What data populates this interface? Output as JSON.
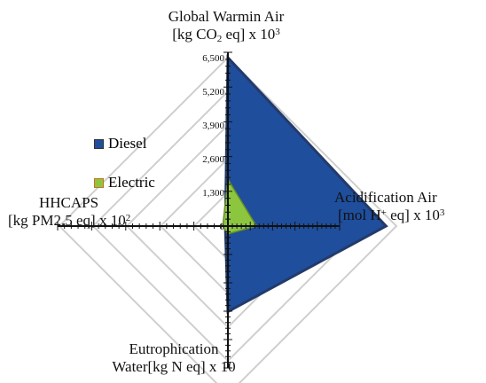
{
  "chart_data": {
    "type": "radar",
    "axes": [
      {
        "key": "gw",
        "line1": "Global Warmin Air",
        "line2_pre": "[kg CO",
        "line2_sub": "2",
        "line2_mid": " eq] x 10",
        "line2_sup": "3",
        "line2_post": ""
      },
      {
        "key": "ac",
        "line1": "Acidification Air",
        "line2_pre": "[mol H",
        "line2_sub": "",
        "line2_mid": "",
        "line2_sup": "+",
        "line2_post": " eq] x 10",
        "line2_sup2": "3"
      },
      {
        "key": "eu",
        "line1": "Eutrophication",
        "line2": "Water[kg N eq] x 10"
      },
      {
        "key": "hh",
        "line1": "HHCAPS",
        "line2_pre": "[kg PM2.5 eq] x 10",
        "line2_sup": "2"
      }
    ],
    "radial_ticks": [
      "0",
      "1,300",
      "2,600",
      "3,900",
      "5,200",
      "6,500"
    ],
    "rmax": 6500,
    "series": [
      {
        "name": "Diesel",
        "color": "#1f4e9c",
        "values": [
          6500,
          6100,
          3300,
          100
        ]
      },
      {
        "name": "Electric",
        "color": "#8cc63f",
        "values": [
          1800,
          1100,
          300,
          200
        ]
      }
    ],
    "legend_position": "left"
  }
}
